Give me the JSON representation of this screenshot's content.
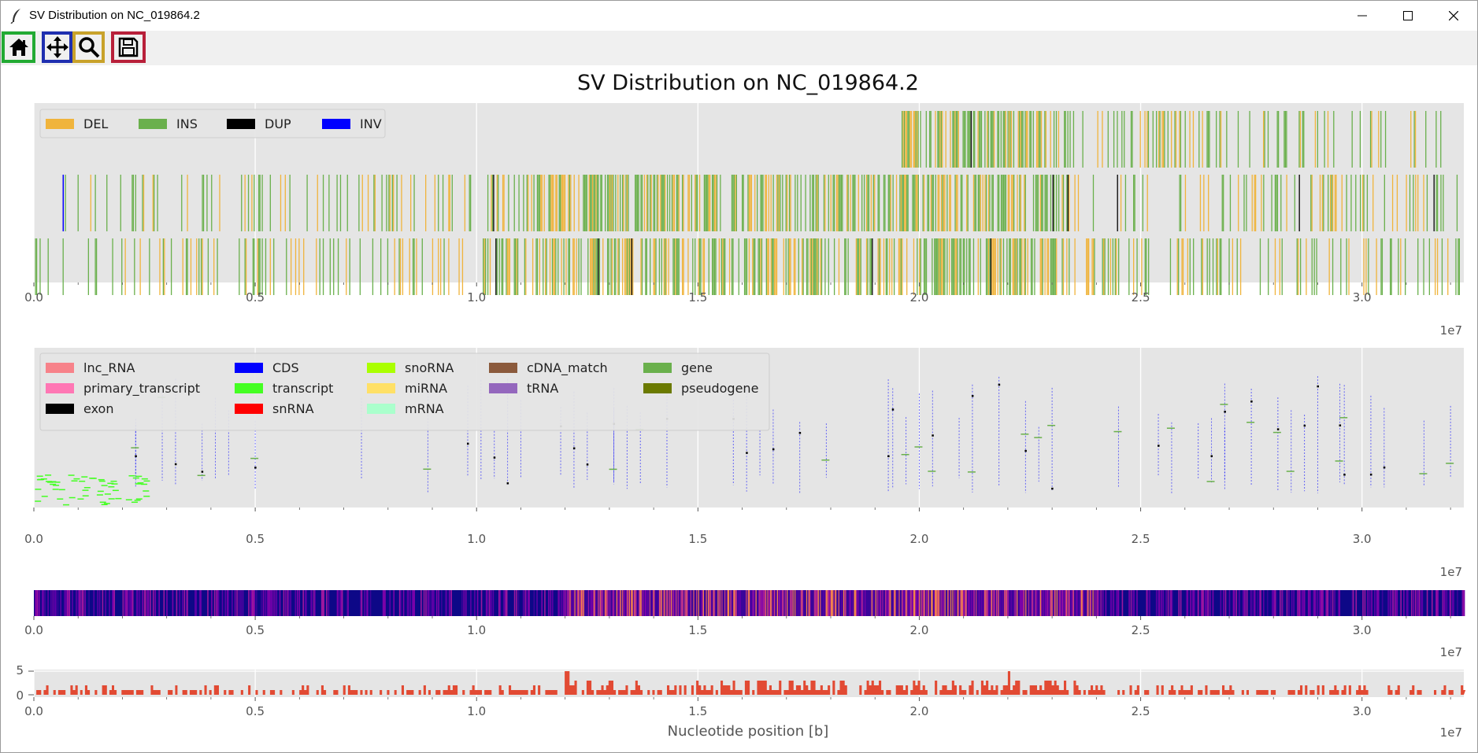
{
  "window": {
    "title": "SV Distribution on NC_019864.2",
    "controls": [
      "minimize",
      "maximize",
      "close"
    ]
  },
  "toolbar": {
    "buttons": [
      {
        "name": "home",
        "icon": "home-icon",
        "highlight": "#22aa33"
      },
      {
        "name": "pan",
        "icon": "move-arrows-icon",
        "highlight": "#1f2fb0"
      },
      {
        "name": "zoom",
        "icon": "magnifier-icon",
        "highlight": "#c8a22a"
      },
      {
        "name": "save",
        "icon": "floppy-disk-icon",
        "highlight": "#b8203a"
      }
    ]
  },
  "figure": {
    "title": "SV Distribution on NC_019864.2",
    "xlabel": "Nucleotide position [b]",
    "offset_text": "1e7",
    "x_ticks": [
      "0.0",
      "0.5",
      "1.0",
      "1.5",
      "2.0",
      "2.5",
      "3.0"
    ],
    "background": "#e5e5e5"
  },
  "chart_data": [
    {
      "type": "bar",
      "panel": "sv-tracks",
      "xlim": [
        0,
        32300000
      ],
      "x_tick_values": [
        0,
        5000000,
        10000000,
        15000000,
        20000000,
        25000000,
        30000000
      ],
      "tracks": 3,
      "track_extents": [
        [
          19600000,
          32200000
        ],
        [
          650000,
          32200000
        ],
        [
          0,
          32200000
        ]
      ],
      "series": [
        {
          "name": "DEL",
          "color": "#f0b43c"
        },
        {
          "name": "INS",
          "color": "#6ab04c"
        },
        {
          "name": "DUP",
          "color": "#000000"
        },
        {
          "name": "INV",
          "color": "#0000ff"
        }
      ],
      "legend": "top-left",
      "grid": true
    },
    {
      "type": "scatter",
      "panel": "annotation-tracks",
      "xlim": [
        0,
        32300000
      ],
      "series": [
        {
          "name": "lnc_RNA",
          "color": "#f7828a"
        },
        {
          "name": "primary_transcript",
          "color": "#ff77b4"
        },
        {
          "name": "exon",
          "color": "#000000"
        },
        {
          "name": "CDS",
          "color": "#0000ff"
        },
        {
          "name": "transcript",
          "color": "#44ff22"
        },
        {
          "name": "snRNA",
          "color": "#ff0000"
        },
        {
          "name": "snoRNA",
          "color": "#aaff00"
        },
        {
          "name": "miRNA",
          "color": "#ffe066"
        },
        {
          "name": "mRNA",
          "color": "#aaffcc"
        },
        {
          "name": "cDNA_match",
          "color": "#8b5a3c"
        },
        {
          "name": "tRNA",
          "color": "#9467bd"
        },
        {
          "name": "gene",
          "color": "#6ab04c"
        },
        {
          "name": "pseudogene",
          "color": "#6b7a00"
        }
      ],
      "legend": "top-left",
      "grid": true
    },
    {
      "type": "heatmap",
      "panel": "density-strip",
      "xlim": [
        0,
        32300000
      ],
      "colormap": "plasma",
      "hot_regions": [
        [
          12000000,
          24000000
        ]
      ]
    },
    {
      "type": "area",
      "panel": "sv-count",
      "xlim": [
        0,
        32300000
      ],
      "ylim": [
        0,
        5
      ],
      "y_ticks": [
        "0",
        "5"
      ],
      "color": "#e24a33",
      "peaks": [
        [
          12000000,
          5
        ],
        [
          22000000,
          5
        ]
      ]
    }
  ]
}
